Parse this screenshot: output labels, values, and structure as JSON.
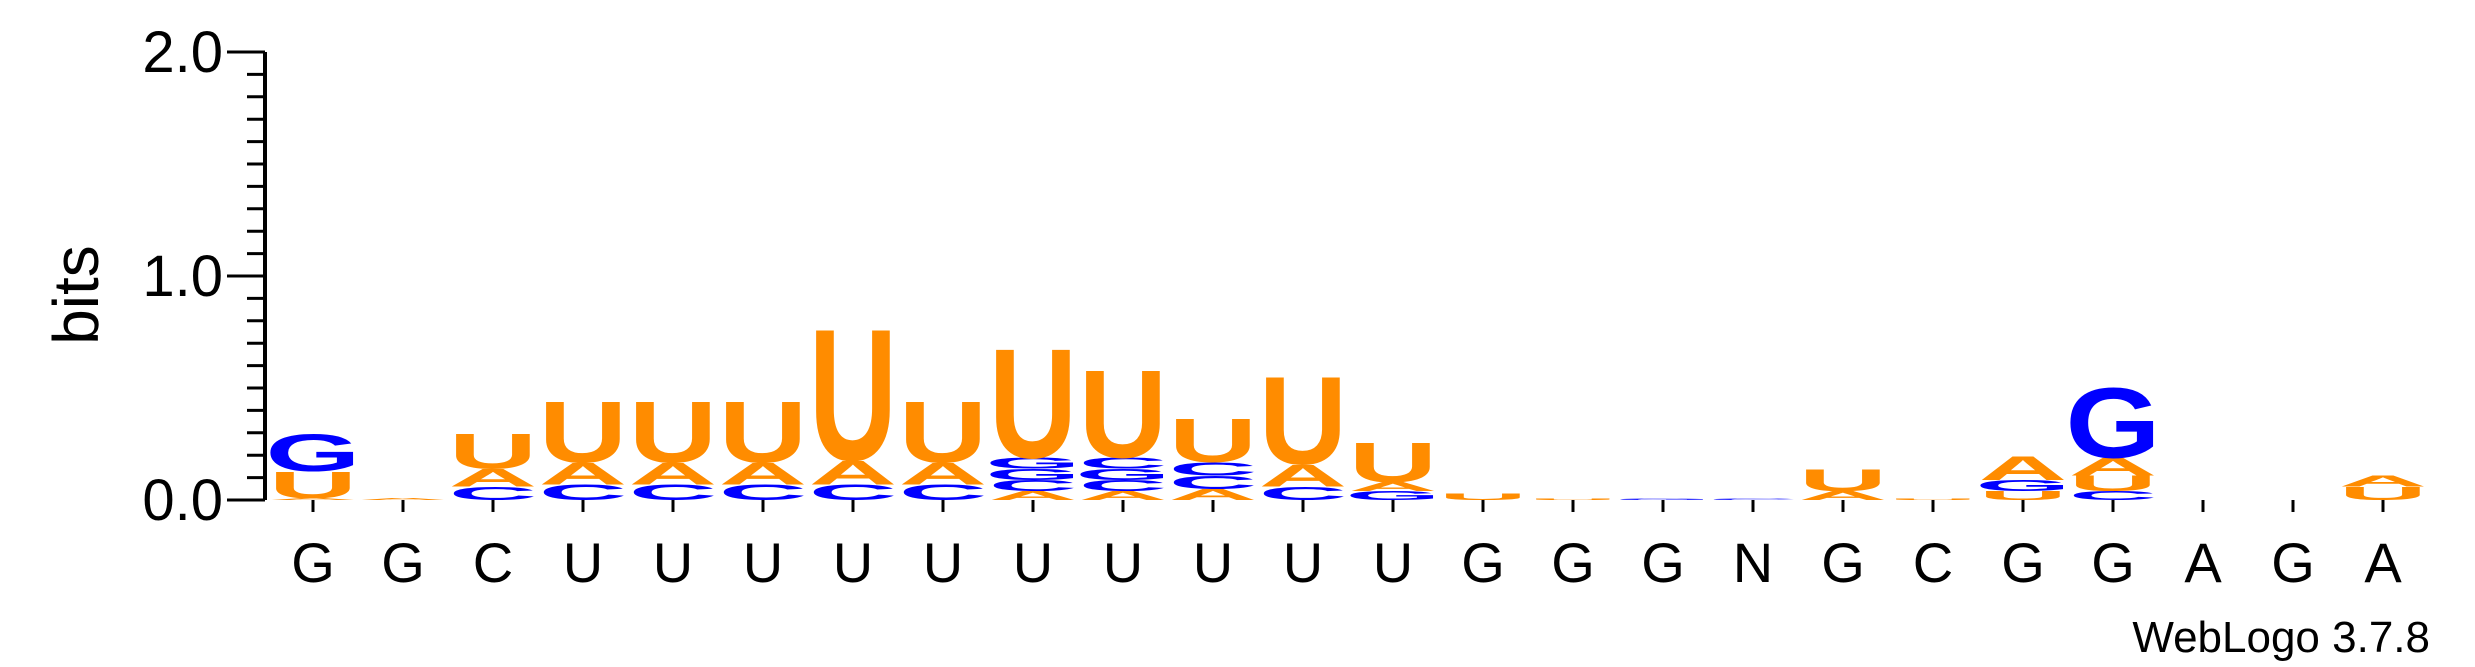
{
  "chart_data": {
    "type": "sequence-logo",
    "ylabel": "bits",
    "ylim": [
      0,
      2
    ],
    "yticks": [
      "0.0",
      "1.0",
      "2.0"
    ],
    "consensus": [
      "G",
      "G",
      "C",
      "U",
      "U",
      "U",
      "U",
      "U",
      "U",
      "U",
      "U",
      "U",
      "U",
      "G",
      "G",
      "G",
      "N",
      "G",
      "C",
      "G",
      "G",
      "A",
      "G",
      "A"
    ],
    "colors": {
      "U": "#FF8C00",
      "A": "#FF8C00",
      "G": "#0000FF",
      "C": "#0000FF"
    },
    "columns": [
      {
        "position": 1,
        "stack": [
          [
            "A",
            0.01
          ],
          [
            "U",
            0.12
          ],
          [
            "G",
            0.17
          ]
        ]
      },
      {
        "position": 2,
        "stack": [
          [
            "A",
            0.01
          ]
        ]
      },
      {
        "position": 3,
        "stack": [
          [
            "C",
            0.06
          ],
          [
            "A",
            0.08
          ],
          [
            "U",
            0.16
          ]
        ]
      },
      {
        "position": 4,
        "stack": [
          [
            "C",
            0.07
          ],
          [
            "A",
            0.1
          ],
          [
            "U",
            0.28
          ]
        ]
      },
      {
        "position": 5,
        "stack": [
          [
            "C",
            0.07
          ],
          [
            "A",
            0.1
          ],
          [
            "U",
            0.28
          ]
        ]
      },
      {
        "position": 6,
        "stack": [
          [
            "C",
            0.07
          ],
          [
            "A",
            0.1
          ],
          [
            "U",
            0.28
          ]
        ]
      },
      {
        "position": 7,
        "stack": [
          [
            "C",
            0.07
          ],
          [
            "A",
            0.11
          ],
          [
            "U",
            0.6
          ]
        ]
      },
      {
        "position": 8,
        "stack": [
          [
            "C",
            0.07
          ],
          [
            "A",
            0.1
          ],
          [
            "U",
            0.28
          ]
        ]
      },
      {
        "position": 9,
        "stack": [
          [
            "A",
            0.04
          ],
          [
            "C",
            0.05
          ],
          [
            "G",
            0.05
          ],
          [
            "G",
            0.05
          ],
          [
            "U",
            0.5
          ]
        ]
      },
      {
        "position": 10,
        "stack": [
          [
            "A",
            0.04
          ],
          [
            "C",
            0.05
          ],
          [
            "G",
            0.05
          ],
          [
            "C",
            0.05
          ],
          [
            "U",
            0.4
          ]
        ]
      },
      {
        "position": 11,
        "stack": [
          [
            "A",
            0.05
          ],
          [
            "C",
            0.06
          ],
          [
            "C",
            0.06
          ],
          [
            "U",
            0.2
          ]
        ]
      },
      {
        "position": 12,
        "stack": [
          [
            "C",
            0.06
          ],
          [
            "A",
            0.1
          ],
          [
            "U",
            0.4
          ]
        ]
      },
      {
        "position": 13,
        "stack": [
          [
            "G",
            0.04
          ],
          [
            "A",
            0.04
          ],
          [
            "U",
            0.18
          ]
        ]
      },
      {
        "position": 14,
        "stack": [
          [
            "U",
            0.03
          ]
        ]
      },
      {
        "position": 15,
        "stack": [
          [
            "U",
            0.005
          ]
        ]
      },
      {
        "position": 16,
        "stack": [
          [
            "G",
            0.005
          ]
        ]
      },
      {
        "position": 17,
        "stack": [
          [
            "C",
            0.005
          ]
        ]
      },
      {
        "position": 18,
        "stack": [
          [
            "A",
            0.04
          ],
          [
            "U",
            0.1
          ]
        ]
      },
      {
        "position": 19,
        "stack": [
          [
            "U",
            0.005
          ]
        ]
      },
      {
        "position": 20,
        "stack": [
          [
            "U",
            0.04
          ],
          [
            "G",
            0.05
          ],
          [
            "A",
            0.11
          ]
        ]
      },
      {
        "position": 21,
        "stack": [
          [
            "C",
            0.04
          ],
          [
            "U",
            0.07
          ],
          [
            "A",
            0.08
          ],
          [
            "G",
            0.32
          ]
        ]
      },
      {
        "position": 22,
        "stack": []
      },
      {
        "position": 23,
        "stack": []
      },
      {
        "position": 24,
        "stack": [
          [
            "U",
            0.06
          ],
          [
            "A",
            0.05
          ]
        ]
      }
    ]
  },
  "footer": {
    "credit": "WebLogo 3.7.8"
  }
}
